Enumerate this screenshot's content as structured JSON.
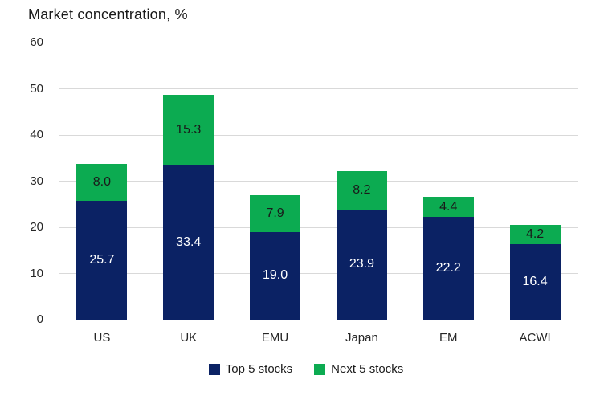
{
  "chart_data": {
    "type": "bar",
    "stacked": true,
    "title": "Market concentration, %",
    "categories": [
      "US",
      "UK",
      "EMU",
      "Japan",
      "EM",
      "ACWI"
    ],
    "series": [
      {
        "name": "Top 5 stocks",
        "color": "#0b2264",
        "label_color": "#ffffff",
        "values": [
          25.7,
          33.4,
          19.0,
          23.9,
          22.2,
          16.4
        ],
        "labels": [
          "25.7",
          "33.4",
          "19.0",
          "23.9",
          "22.2",
          "16.4"
        ]
      },
      {
        "name": "Next 5 stocks",
        "color": "#0cab51",
        "label_color": "#1a1a1a",
        "values": [
          8.0,
          15.3,
          7.9,
          8.2,
          4.4,
          4.2
        ],
        "labels": [
          "8.0",
          "15.3",
          "7.9",
          "8.2",
          "4.4",
          "4.2"
        ]
      }
    ],
    "totals": [
      33.7,
      48.7,
      26.9,
      32.1,
      26.6,
      20.6
    ],
    "ylim": [
      0,
      60
    ],
    "yticks": [
      0,
      10,
      20,
      30,
      40,
      50,
      60
    ],
    "grid": true,
    "legend_position": "bottom"
  },
  "colors": {
    "grid": "#d9d9d9",
    "axis_text": "#262626",
    "title_text": "#1a1a1a",
    "background": "#ffffff"
  }
}
